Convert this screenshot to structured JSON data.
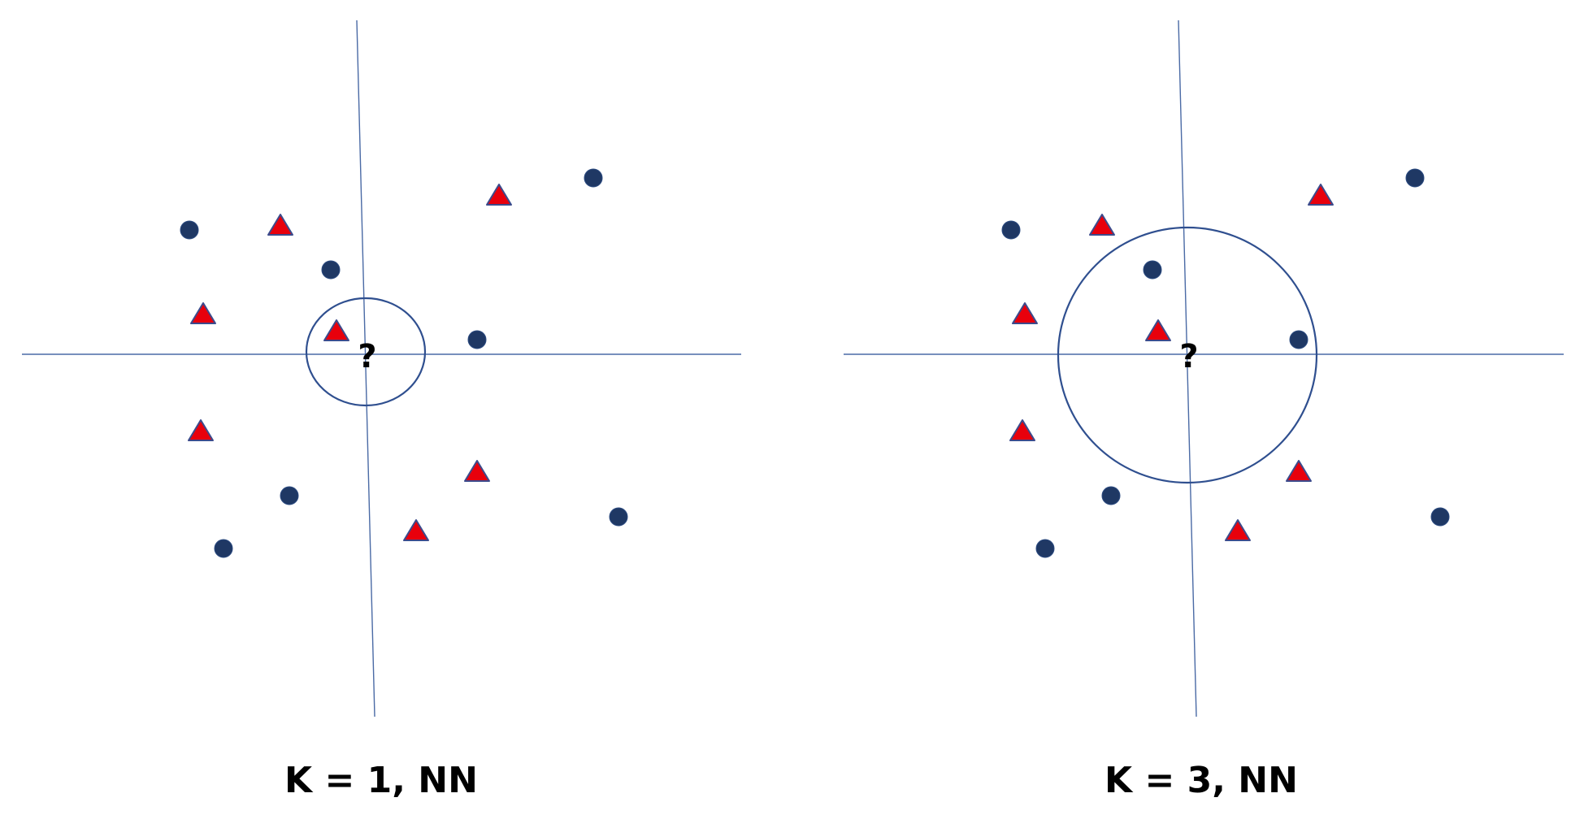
{
  "colors": {
    "axis": "#4a6aa5",
    "circle_point": "#1f3864",
    "triangle_fill": "#e8000c",
    "triangle_stroke": "#3c4b8c",
    "neighborhood": "#2f4f8f"
  },
  "query_label": "?",
  "panels": [
    {
      "name": "k1",
      "caption": "K = 1, NN",
      "k": 1
    },
    {
      "name": "k3",
      "caption": "K = 3, NN",
      "k": 3
    }
  ]
}
